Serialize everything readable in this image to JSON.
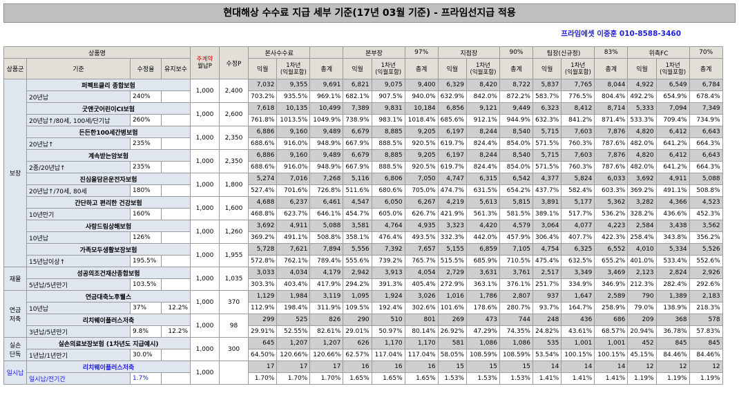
{
  "title": "현대해상 수수료 지급 세부 기준(17년 03월 기준) - 프라임선지급 적용",
  "contact": "프라임에셋 이중훈 010-8588-3460",
  "header": {
    "product": "상품명",
    "group": "상품군",
    "criteria": "기준",
    "receive_rate": "수정율",
    "maintain_fee": "유지보수",
    "main_contract_line1": "주계약",
    "main_contract_line2": "월납P",
    "adjusted_p": "수정P",
    "sections": [
      {
        "name": "본사수수료",
        "pct": ""
      },
      {
        "name": "본부장",
        "pct": "97%"
      },
      {
        "name": "지점장",
        "pct": "90%"
      },
      {
        "name": "팀장(신규정)",
        "pct": "83%"
      },
      {
        "name": "위촉FC",
        "pct": "70%"
      }
    ],
    "sub_month": "익월",
    "sub_year_1": "1차년",
    "sub_year_2": "(익월포함)",
    "sub_total": "총계"
  },
  "groups": [
    {
      "name": "보장"
    },
    {
      "name": "재물"
    },
    {
      "name": "연금\n저축"
    },
    {
      "name": "실손\n단독"
    },
    {
      "name": "일시납"
    }
  ],
  "products": [
    {
      "name": "퍼펙트클리 종합보험",
      "cond": "20년납",
      "rate": "240%",
      "maint": "",
      "main_p": "1,000",
      "adj_p": "2,400",
      "vals": [
        "7,032",
        "9,355",
        "9,691",
        "6,821",
        "9,075",
        "9,400",
        "6,329",
        "8,420",
        "8,722",
        "5,837",
        "7,765",
        "8,044",
        "4,922",
        "6,549",
        "6,784"
      ],
      "pcts": [
        "703.2%",
        "935.5%",
        "969.1%",
        "682.1%",
        "907.5%",
        "940.0%",
        "632.9%",
        "842.0%",
        "872.2%",
        "583.7%",
        "776.5%",
        "804.4%",
        "492.2%",
        "654.9%",
        "678.4%"
      ]
    },
    {
      "name": "굿앤굿어린이CI보험",
      "cond": "20년납↑/80세, 100세/단기납",
      "rate": "260%",
      "maint": "",
      "main_p": "1,000",
      "adj_p": "2,600",
      "vals": [
        "7,618",
        "10,135",
        "10,499",
        "7,389",
        "9,831",
        "10,184",
        "6,856",
        "9,121",
        "9,449",
        "6,323",
        "8,412",
        "8,714",
        "5,333",
        "7,094",
        "7,349"
      ],
      "pcts": [
        "761.8%",
        "1013.5%",
        "1049.9%",
        "738.9%",
        "983.1%",
        "1018.4%",
        "685.6%",
        "912.1%",
        "944.9%",
        "632.3%",
        "841.2%",
        "871.4%",
        "533.3%",
        "709.4%",
        "734.9%"
      ]
    },
    {
      "name": "든든한100세간병보험",
      "cond": "20년납↑",
      "rate": "235%",
      "maint": "",
      "main_p": "1,000",
      "adj_p": "2,350",
      "vals": [
        "6,886",
        "9,160",
        "9,489",
        "6,679",
        "8,885",
        "9,205",
        "6,197",
        "8,244",
        "8,540",
        "5,715",
        "7,603",
        "7,876",
        "4,820",
        "6,412",
        "6,643"
      ],
      "pcts": [
        "688.6%",
        "916.0%",
        "948.9%",
        "667.9%",
        "888.5%",
        "920.5%",
        "619.7%",
        "824.4%",
        "854.0%",
        "571.5%",
        "760.3%",
        "787.6%",
        "482.0%",
        "641.2%",
        "664.3%"
      ]
    },
    {
      "name": "계속받는암보험",
      "cond": "2종/20년납↑",
      "rate": "235%",
      "maint": "",
      "main_p": "1,000",
      "adj_p": "2,350",
      "vals": [
        "6,886",
        "9,160",
        "9,489",
        "6,679",
        "8,885",
        "9,205",
        "6,197",
        "8,244",
        "8,540",
        "5,715",
        "7,603",
        "7,876",
        "4,820",
        "6,412",
        "6,643"
      ],
      "pcts": [
        "688.6%",
        "916.0%",
        "948.9%",
        "667.9%",
        "888.5%",
        "920.5%",
        "619.7%",
        "824.4%",
        "854.0%",
        "571.5%",
        "760.3%",
        "787.6%",
        "482.0%",
        "641.2%",
        "664.3%"
      ]
    },
    {
      "name": "진심을담은운전자보험",
      "cond": "20년납↑/70세, 80세",
      "rate": "180%",
      "maint": "",
      "main_p": "1,000",
      "adj_p": "1,800",
      "vals": [
        "5,274",
        "7,016",
        "7,268",
        "5,116",
        "6,806",
        "7,050",
        "4,747",
        "6,315",
        "6,542",
        "4,377",
        "5,824",
        "6,033",
        "3,692",
        "4,911",
        "5,088"
      ],
      "pcts": [
        "527.4%",
        "701.6%",
        "726.8%",
        "511.6%",
        "680.6%",
        "705.0%",
        "474.7%",
        "631.5%",
        "654.2%",
        "437.7%",
        "582.4%",
        "603.3%",
        "369.2%",
        "491.1%",
        "508.8%"
      ]
    },
    {
      "name": "간단하고 편리한 건강보험",
      "cond": "10년만기",
      "rate": "160%",
      "maint": "",
      "main_p": "1,000",
      "adj_p": "1,600",
      "vals": [
        "4,688",
        "6,237",
        "6,461",
        "4,547",
        "6,050",
        "6,267",
        "4,219",
        "5,613",
        "5,815",
        "3,891",
        "5,177",
        "5,362",
        "3,282",
        "4,366",
        "4,523"
      ],
      "pcts": [
        "468.8%",
        "623.7%",
        "646.1%",
        "454.7%",
        "605.0%",
        "626.7%",
        "421.9%",
        "561.3%",
        "581.5%",
        "389.1%",
        "517.7%",
        "536.2%",
        "328.2%",
        "436.6%",
        "452.3%"
      ]
    },
    {
      "name": "사랑드림상해보험",
      "cond": "10년납",
      "rate": "126%",
      "maint": "",
      "main_p": "1,000",
      "adj_p": "1,260",
      "vals": [
        "3,692",
        "4,911",
        "5,088",
        "3,581",
        "4,764",
        "4,935",
        "3,323",
        "4,420",
        "4,579",
        "3,064",
        "4,077",
        "4,223",
        "2,584",
        "3,438",
        "3,562"
      ],
      "pcts": [
        "369.2%",
        "491.1%",
        "508.8%",
        "358.1%",
        "476.4%",
        "493.5%",
        "332.3%",
        "442.0%",
        "457.9%",
        "306.4%",
        "407.7%",
        "422.3%",
        "258.4%",
        "343.8%",
        "356.2%"
      ]
    },
    {
      "name": "가족모두생활보장보험",
      "cond": "15년납이상↑",
      "rate": "195.5%",
      "maint": "",
      "main_p": "1,000",
      "adj_p": "1,955",
      "vals": [
        "5,728",
        "7,621",
        "7,894",
        "5,556",
        "7,392",
        "7,657",
        "5,155",
        "6,859",
        "7,105",
        "4,754",
        "6,325",
        "6,552",
        "4,010",
        "5,334",
        "5,526"
      ],
      "pcts": [
        "572.8%",
        "762.1%",
        "789.4%",
        "555.6%",
        "739.2%",
        "765.7%",
        "515.5%",
        "685.9%",
        "710.5%",
        "475.4%",
        "632.5%",
        "655.2%",
        "401.0%",
        "533.4%",
        "552.6%"
      ]
    },
    {
      "name": "성공의조건재산종합보험",
      "cond": "5년납/5년만기",
      "rate": "103.5%",
      "maint": "",
      "main_p": "1,000",
      "adj_p": "1,035",
      "vals": [
        "3,033",
        "4,034",
        "4,179",
        "2,942",
        "3,913",
        "4,054",
        "2,729",
        "3,631",
        "3,761",
        "2,517",
        "3,349",
        "3,469",
        "2,123",
        "2,824",
        "2,926"
      ],
      "pcts": [
        "303.3%",
        "403.4%",
        "417.9%",
        "294.2%",
        "391.3%",
        "405.4%",
        "272.9%",
        "363.1%",
        "376.1%",
        "251.7%",
        "334.9%",
        "346.9%",
        "212.3%",
        "282.4%",
        "292.6%"
      ]
    },
    {
      "name": "연금대축노후웰스",
      "cond": "10년납",
      "rate": "37%",
      "maint": "12.2%",
      "main_p": "1,000",
      "adj_p": "370",
      "vals": [
        "1,129",
        "1,984",
        "3,119",
        "1,095",
        "1,924",
        "3,026",
        "1,016",
        "1,786",
        "2,807",
        "937",
        "1,647",
        "2,589",
        "790",
        "1,389",
        "2,183"
      ],
      "pcts": [
        "112.9%",
        "198.4%",
        "311.9%",
        "109.5%",
        "192.4%",
        "302.6%",
        "101.6%",
        "178.6%",
        "280.7%",
        "93.7%",
        "164.7%",
        "258.9%",
        "79.0%",
        "138.9%",
        "218.3%"
      ]
    },
    {
      "name": "리치웨이플러스저축",
      "cond": "3년납/5년만기",
      "rate": "9.8%",
      "maint": "12.2%",
      "main_p": "1,000",
      "adj_p": "98",
      "vals": [
        "299",
        "525",
        "826",
        "290",
        "510",
        "801",
        "269",
        "473",
        "744",
        "248",
        "436",
        "686",
        "209",
        "368",
        "578"
      ],
      "pcts": [
        "29.91%",
        "52.55%",
        "82.61%",
        "29.01%",
        "50.97%",
        "80.14%",
        "26.92%",
        "47.29%",
        "74.35%",
        "24.82%",
        "43.61%",
        "68.57%",
        "20.94%",
        "36.78%",
        "57.83%"
      ]
    },
    {
      "name": "실손의료보장보험 (1차년도 지급예시)",
      "cond": "1년납/1년만기",
      "rate": "30.0%",
      "maint": "",
      "main_p": "1,000",
      "adj_p": "300",
      "vals": [
        "645",
        "1,207",
        "1,207",
        "626",
        "1,170",
        "1,170",
        "581",
        "1,086",
        "1,086",
        "535",
        "1,001",
        "1,001",
        "452",
        "845",
        "845"
      ],
      "pcts": [
        "64.50%",
        "120.66%",
        "120.66%",
        "62.57%",
        "117.04%",
        "117.04%",
        "58.05%",
        "108.59%",
        "108.59%",
        "53.54%",
        "100.15%",
        "100.15%",
        "45.15%",
        "84.46%",
        "84.46%"
      ]
    },
    {
      "name": "리치웨이플러스저축",
      "cond": "일시납/전기간",
      "rate": "1.7%",
      "maint": "",
      "main_p": "1,000",
      "adj_p": "",
      "vals": [
        "17",
        "17",
        "17",
        "16",
        "16",
        "16",
        "15",
        "15",
        "15",
        "14",
        "14",
        "14",
        "12",
        "12",
        "12"
      ],
      "pcts": [
        "1.70%",
        "1.70%",
        "1.70%",
        "1.65%",
        "1.65%",
        "1.65%",
        "1.53%",
        "1.53%",
        "1.53%",
        "1.41%",
        "1.41%",
        "1.41%",
        "1.19%",
        "1.19%",
        "1.19%"
      ]
    }
  ],
  "group_spans": [
    8,
    1,
    2,
    1,
    1
  ]
}
